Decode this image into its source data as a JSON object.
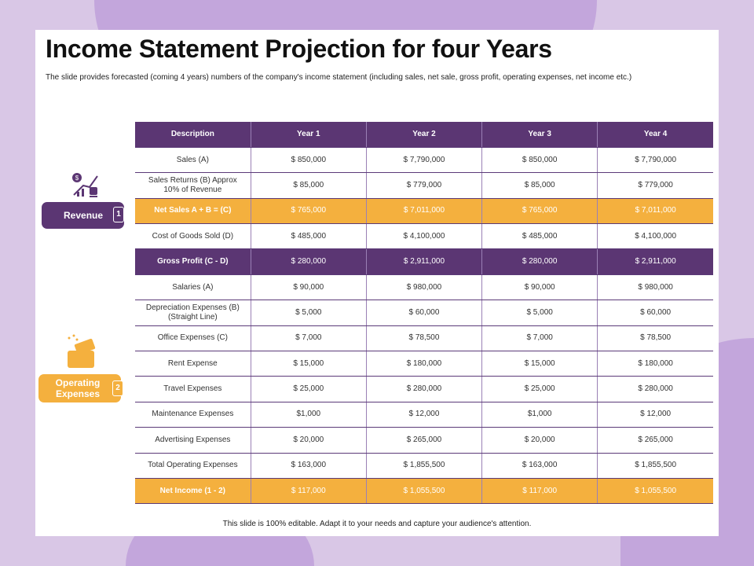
{
  "title": "Income Statement Projection for four Years",
  "subtitle": "The slide provides forecasted (coming 4 years) numbers of the company's income statement (including sales, net sale, gross profit, operating expenses, net income etc.)",
  "headers": [
    "Description",
    "Year 1",
    "Year 2",
    "Year 3",
    "Year 4"
  ],
  "rows": [
    [
      "Sales (A)",
      "$ 850,000",
      "$ 7,790,000",
      "$ 850,000",
      "$ 7,790,000"
    ],
    [
      "Sales Returns (B) Approx 10% of Revenue",
      "$ 85,000",
      "$ 779,000",
      "$ 85,000",
      "$ 779,000"
    ],
    [
      "Net Sales A + B = (C)",
      "$ 765,000",
      "$ 7,011,000",
      "$ 765,000",
      "$ 7,011,000"
    ],
    [
      "Cost of Goods Sold (D)",
      "$ 485,000",
      "$ 4,100,000",
      "$ 485,000",
      "$ 4,100,000"
    ],
    [
      "Gross Profit (C - D)",
      "$ 280,000",
      "$ 2,911,000",
      "$ 280,000",
      "$ 2,911,000"
    ],
    [
      "Salaries (A)",
      "$ 90,000",
      "$ 980,000",
      "$ 90,000",
      "$ 980,000"
    ],
    [
      "Depreciation Expenses (B) (Straight Line)",
      "$ 5,000",
      "$ 60,000",
      "$ 5,000",
      "$ 60,000"
    ],
    [
      "Office Expenses (C)",
      "$ 7,000",
      "$ 78,500",
      "$ 7,000",
      "$ 78,500"
    ],
    [
      "Rent Expense",
      "$ 15,000",
      "$ 180,000",
      "$ 15,000",
      "$ 180,000"
    ],
    [
      "Travel Expenses",
      "$ 25,000",
      "$ 280,000",
      "$ 25,000",
      "$ 280,000"
    ],
    [
      "Maintenance Expenses",
      "$1,000",
      "$ 12,000",
      "$1,000",
      "$ 12,000"
    ],
    [
      "Advertising Expenses",
      "$ 20,000",
      "$ 265,000",
      "$ 20,000",
      "$ 265,000"
    ],
    [
      "Total Operating Expenses",
      "$ 163,000",
      "$ 1,855,500",
      "$ 163,000",
      "$ 1,855,500"
    ],
    [
      "Net Income (1 - 2)",
      "$ 117,000",
      "$ 1,055,500",
      "$ 117,000",
      "$ 1,055,500"
    ]
  ],
  "row_styles": [
    "",
    "",
    "orange",
    "",
    "purple",
    "",
    "",
    "",
    "",
    "",
    "",
    "",
    "",
    "orange"
  ],
  "revenue": {
    "label": "Revenue",
    "number": "1"
  },
  "opex": {
    "label": "Operating Expenses",
    "number": "2"
  },
  "footer": "This slide is 100% editable. Adapt it to your needs and capture your audience's attention.",
  "colors": {
    "purple": "#5b3673",
    "orange": "#f4b03e"
  }
}
